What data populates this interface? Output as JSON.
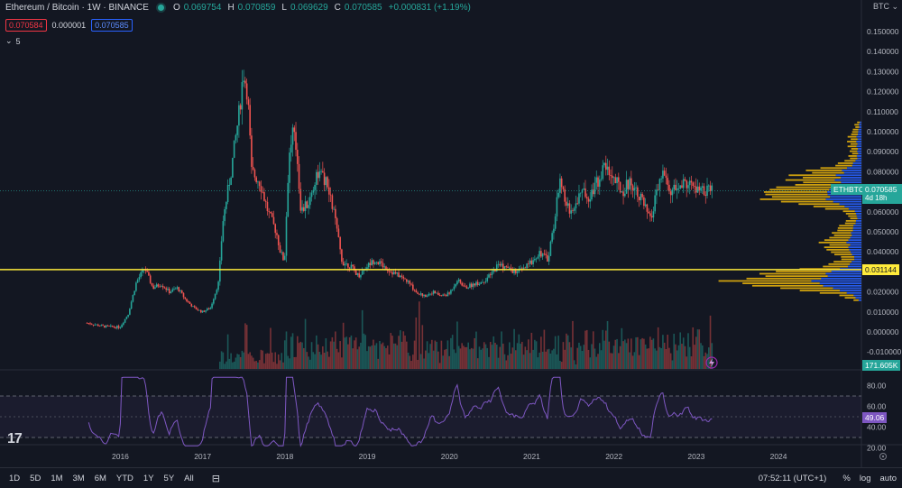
{
  "header": {
    "symbol": "Ethereum / Bitcoin · 1W · BINANCE",
    "ohlc": [
      {
        "k": "O",
        "v": "0.069754"
      },
      {
        "k": "H",
        "v": "0.070859"
      },
      {
        "k": "L",
        "v": "0.069629"
      },
      {
        "k": "C",
        "v": "0.070585"
      },
      {
        "k": "",
        "v": "+0.000831 (+1.19%)"
      }
    ],
    "bid": "0.070584",
    "spread": "0.000001",
    "ask": "0.070585",
    "indicators_count": "5",
    "currency": "BTC"
  },
  "colors": {
    "up": "#26a69a",
    "down": "#ef5350",
    "level": "#ffeb3b",
    "rsi": "#7e57c2",
    "vp_blue": "#2962ff",
    "vp_gold": "#f0b90b"
  },
  "price_tags": {
    "symbol_tag": "ETHBTC",
    "last": "0.070585",
    "countdown": "4d 18h",
    "level": "0.031144",
    "volume": "171.605K",
    "rsi": "49.06"
  },
  "bottom": {
    "timeframes": [
      "1D",
      "5D",
      "1M",
      "3M",
      "6M",
      "YTD",
      "1Y",
      "5Y",
      "All"
    ],
    "time": "07:52:11 (UTC+1)",
    "percent": "%",
    "log": "log",
    "auto": "auto"
  },
  "chart_data": {
    "type": "candlestick",
    "title": "Ethereum / Bitcoin · 1W · BINANCE",
    "price_axis": {
      "ticks": [
        "0.150000",
        "0.140000",
        "0.130000",
        "0.120000",
        "0.110000",
        "0.100000",
        "0.090000",
        "0.080000",
        "0.070000",
        "0.060000",
        "0.050000",
        "0.040000",
        "0.030000",
        "0.020000",
        "0.010000",
        "0.000000",
        "-0.010000"
      ],
      "range": [
        -0.012,
        0.16
      ]
    },
    "time_axis": {
      "ticks": [
        "2016",
        "2017",
        "2018",
        "2019",
        "2020",
        "2021",
        "2022",
        "2023",
        "2024"
      ]
    },
    "horizontal_level": 0.031144,
    "close_path": [
      {
        "t": 2015.6,
        "v": 0.0045
      },
      {
        "t": 2015.8,
        "v": 0.0028
      },
      {
        "t": 2016.0,
        "v": 0.0024
      },
      {
        "t": 2016.1,
        "v": 0.009
      },
      {
        "t": 2016.2,
        "v": 0.025
      },
      {
        "t": 2016.3,
        "v": 0.032
      },
      {
        "t": 2016.4,
        "v": 0.022
      },
      {
        "t": 2016.5,
        "v": 0.024
      },
      {
        "t": 2016.6,
        "v": 0.02
      },
      {
        "t": 2016.7,
        "v": 0.022
      },
      {
        "t": 2016.8,
        "v": 0.016
      },
      {
        "t": 2016.9,
        "v": 0.012
      },
      {
        "t": 2017.0,
        "v": 0.01
      },
      {
        "t": 2017.1,
        "v": 0.012
      },
      {
        "t": 2017.2,
        "v": 0.025
      },
      {
        "t": 2017.25,
        "v": 0.055
      },
      {
        "t": 2017.35,
        "v": 0.08
      },
      {
        "t": 2017.45,
        "v": 0.11
      },
      {
        "t": 2017.5,
        "v": 0.13
      },
      {
        "t": 2017.55,
        "v": 0.12
      },
      {
        "t": 2017.6,
        "v": 0.08
      },
      {
        "t": 2017.7,
        "v": 0.075
      },
      {
        "t": 2017.8,
        "v": 0.06
      },
      {
        "t": 2017.9,
        "v": 0.05
      },
      {
        "t": 2017.95,
        "v": 0.04
      },
      {
        "t": 2018.0,
        "v": 0.035
      },
      {
        "t": 2018.05,
        "v": 0.085
      },
      {
        "t": 2018.1,
        "v": 0.1
      },
      {
        "t": 2018.15,
        "v": 0.09
      },
      {
        "t": 2018.2,
        "v": 0.06
      },
      {
        "t": 2018.3,
        "v": 0.065
      },
      {
        "t": 2018.4,
        "v": 0.08
      },
      {
        "t": 2018.5,
        "v": 0.075
      },
      {
        "t": 2018.6,
        "v": 0.06
      },
      {
        "t": 2018.7,
        "v": 0.035
      },
      {
        "t": 2018.8,
        "v": 0.033
      },
      {
        "t": 2018.9,
        "v": 0.028
      },
      {
        "t": 2019.0,
        "v": 0.033
      },
      {
        "t": 2019.1,
        "v": 0.036
      },
      {
        "t": 2019.2,
        "v": 0.033
      },
      {
        "t": 2019.3,
        "v": 0.03
      },
      {
        "t": 2019.4,
        "v": 0.028
      },
      {
        "t": 2019.5,
        "v": 0.025
      },
      {
        "t": 2019.6,
        "v": 0.02
      },
      {
        "t": 2019.7,
        "v": 0.018
      },
      {
        "t": 2019.8,
        "v": 0.02
      },
      {
        "t": 2019.9,
        "v": 0.018
      },
      {
        "t": 2020.0,
        "v": 0.019
      },
      {
        "t": 2020.1,
        "v": 0.026
      },
      {
        "t": 2020.2,
        "v": 0.022
      },
      {
        "t": 2020.3,
        "v": 0.024
      },
      {
        "t": 2020.4,
        "v": 0.025
      },
      {
        "t": 2020.5,
        "v": 0.028
      },
      {
        "t": 2020.6,
        "v": 0.034
      },
      {
        "t": 2020.7,
        "v": 0.032
      },
      {
        "t": 2020.8,
        "v": 0.03
      },
      {
        "t": 2020.9,
        "v": 0.031
      },
      {
        "t": 2021.0,
        "v": 0.035
      },
      {
        "t": 2021.1,
        "v": 0.04
      },
      {
        "t": 2021.2,
        "v": 0.036
      },
      {
        "t": 2021.3,
        "v": 0.06
      },
      {
        "t": 2021.35,
        "v": 0.08
      },
      {
        "t": 2021.4,
        "v": 0.065
      },
      {
        "t": 2021.5,
        "v": 0.06
      },
      {
        "t": 2021.6,
        "v": 0.07
      },
      {
        "t": 2021.7,
        "v": 0.068
      },
      {
        "t": 2021.8,
        "v": 0.075
      },
      {
        "t": 2021.9,
        "v": 0.083
      },
      {
        "t": 2022.0,
        "v": 0.077
      },
      {
        "t": 2022.1,
        "v": 0.07
      },
      {
        "t": 2022.2,
        "v": 0.075
      },
      {
        "t": 2022.3,
        "v": 0.07
      },
      {
        "t": 2022.4,
        "v": 0.06
      },
      {
        "t": 2022.45,
        "v": 0.055
      },
      {
        "t": 2022.5,
        "v": 0.065
      },
      {
        "t": 2022.6,
        "v": 0.08
      },
      {
        "t": 2022.65,
        "v": 0.073
      },
      {
        "t": 2022.7,
        "v": 0.07
      },
      {
        "t": 2022.8,
        "v": 0.072
      },
      {
        "t": 2022.9,
        "v": 0.075
      },
      {
        "t": 2023.0,
        "v": 0.071
      },
      {
        "t": 2023.1,
        "v": 0.07
      },
      {
        "t": 2023.2,
        "v": 0.0706
      }
    ],
    "rsi_axis": {
      "ticks": [
        "80.00",
        "60.00",
        "40.00",
        "20.00"
      ],
      "bands": [
        30,
        70
      ]
    },
    "rsi_current": 49.06
  }
}
